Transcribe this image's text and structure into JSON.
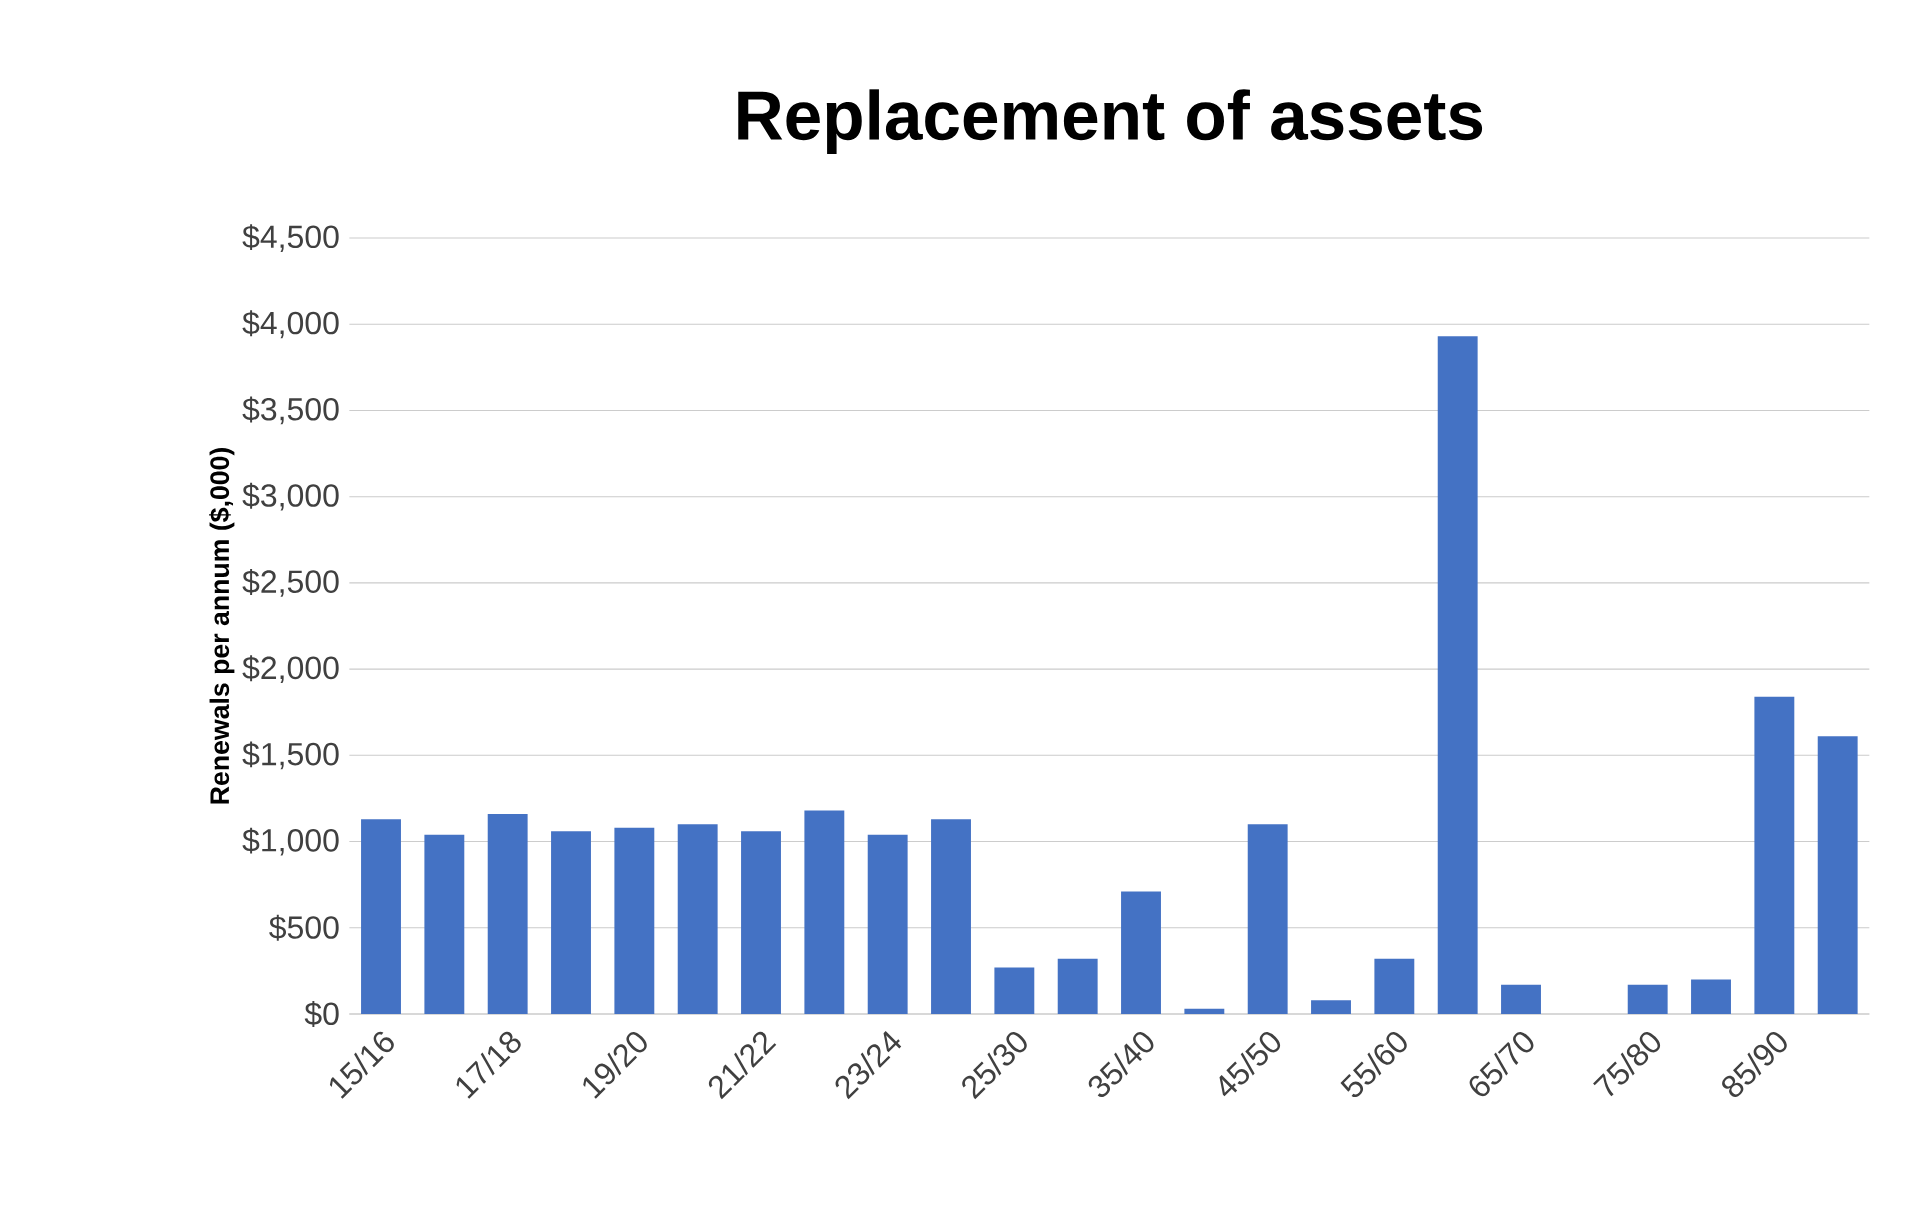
{
  "chart_data": {
    "type": "bar",
    "title": "Replacement of assets",
    "ylabel": "Renewals per annum ($,000)",
    "categories": [
      "15/16",
      null,
      "17/18",
      null,
      "19/20",
      null,
      "21/22",
      null,
      "23/24",
      null,
      "25/30",
      null,
      "35/40",
      null,
      "45/50",
      null,
      "55/60",
      null,
      "65/70",
      null,
      "75/80",
      null,
      "85/90",
      null
    ],
    "values": [
      1130,
      1040,
      1160,
      1060,
      1080,
      1100,
      1060,
      1180,
      1040,
      1130,
      270,
      320,
      710,
      30,
      1100,
      80,
      320,
      3930,
      170,
      0,
      170,
      200,
      1840,
      1610
    ],
    "color": "#4472c4",
    "ylim": [
      0,
      4500
    ],
    "yticks": [
      {
        "value": 0,
        "label": "$0"
      },
      {
        "value": 500,
        "label": "$500"
      },
      {
        "value": 1000,
        "label": "$1,000"
      },
      {
        "value": 1500,
        "label": "$1,500"
      },
      {
        "value": 2000,
        "label": "$2,000"
      },
      {
        "value": 2500,
        "label": "$2,500"
      },
      {
        "value": 3000,
        "label": "$3,000"
      },
      {
        "value": 3500,
        "label": "$3,500"
      },
      {
        "value": 4000,
        "label": "$4,000"
      },
      {
        "value": 4500,
        "label": "$4,500"
      }
    ],
    "grid": "y"
  }
}
